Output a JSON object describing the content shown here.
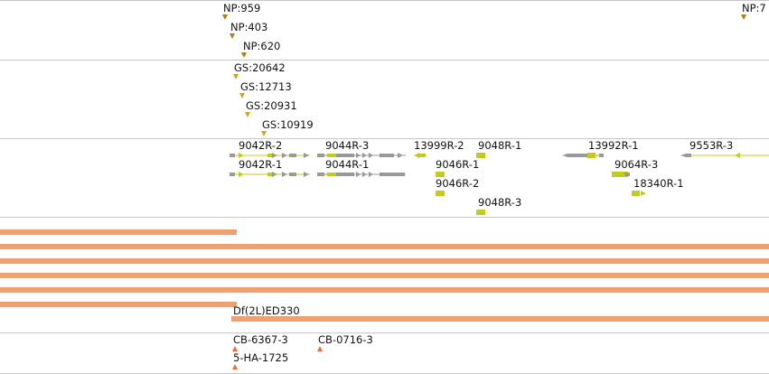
{
  "tracks": {
    "np_features": [
      "NP:959",
      "NP:403",
      "NP:620",
      "NP:7"
    ],
    "gs_features": [
      "GS:20642",
      "GS:12713",
      "GS:20931",
      "GS:10919"
    ],
    "transcripts": [
      "9042R-2",
      "9042R-1",
      "9044R-3",
      "9044R-1",
      "13999R-2",
      "9048R-1",
      "9046R-1",
      "9046R-2",
      "9048R-3",
      "13992R-1",
      "9064R-3",
      "18340R-1",
      "9553R-3"
    ],
    "deficiency": {
      "label": "Df(2L)ED330"
    },
    "insertions": [
      "CB-6367-3",
      "CB-0716-3",
      "5-HA-1725"
    ]
  },
  "colors": {
    "np": "#b07d10",
    "gs": "#d6a31e",
    "exon_coding": "#c3cc1a",
    "exon_utr": "#999999",
    "intron": "#c3cc1a",
    "deficiency_bar": "#f0a070",
    "insertion": "#f06a3c",
    "separator": "#c8c8c8"
  }
}
